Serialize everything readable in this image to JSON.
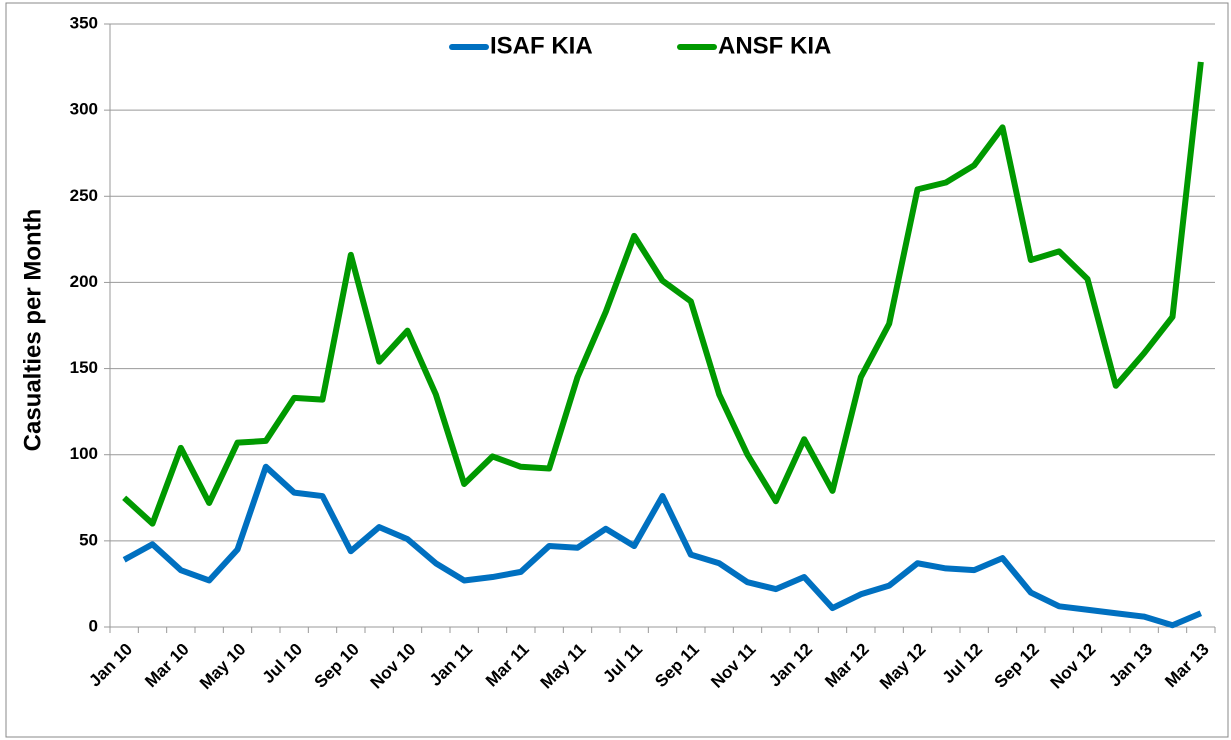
{
  "chart_data": {
    "type": "line",
    "y_label": "Casualties per Month",
    "categories": [
      "Jan 10",
      null,
      "Mar 10",
      null,
      "May 10",
      null,
      "Jul 10",
      null,
      "Sep 10",
      null,
      "Nov 10",
      null,
      "Jan 11",
      null,
      "Mar 11",
      null,
      "May 11",
      null,
      "Jul 11",
      null,
      "Sep 11",
      null,
      "Nov 11",
      null,
      "Jan 12",
      null,
      "Mar 12",
      null,
      "May 12",
      null,
      "Jul 12",
      null,
      "Sep 12",
      null,
      "Nov 12",
      null,
      "Jan 13",
      null,
      "Mar 13"
    ],
    "series": [
      {
        "name": "ISAF KIA",
        "color": "#0070c0",
        "values": [
          39,
          48,
          33,
          27,
          45,
          93,
          78,
          76,
          44,
          58,
          51,
          37,
          27,
          29,
          32,
          47,
          46,
          57,
          47,
          76,
          42,
          37,
          26,
          22,
          29,
          11,
          19,
          24,
          37,
          34,
          33,
          40,
          20,
          12,
          10,
          8,
          6,
          1,
          8
        ]
      },
      {
        "name": "ANSF KIA",
        "color": "#009900",
        "values": [
          75,
          60,
          104,
          72,
          107,
          108,
          133,
          132,
          216,
          154,
          172,
          135,
          83,
          99,
          93,
          92,
          145,
          183,
          227,
          201,
          189,
          135,
          100,
          73,
          109,
          79,
          145,
          176,
          254,
          258,
          268,
          290,
          213,
          218,
          202,
          140,
          159,
          180,
          328
        ]
      }
    ],
    "ylim": [
      0,
      350
    ],
    "yticks": [
      0,
      50,
      100,
      150,
      200,
      250,
      300,
      350
    ],
    "grid": true,
    "legend": "top"
  }
}
